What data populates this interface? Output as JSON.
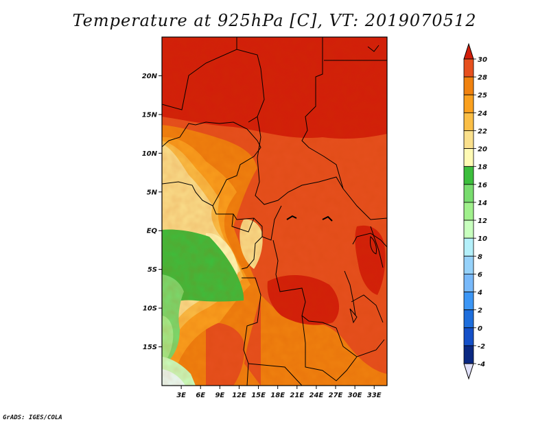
{
  "title": "Temperature at 925hPa [C], VT: 2019070512",
  "credit": "GrADS: IGES/COLA",
  "map": {
    "region": "Central Africa",
    "lon_range": [
      0,
      35
    ],
    "lat_range": [
      -20,
      25
    ],
    "lat_ticks": [
      {
        "value": 20,
        "label": "20N"
      },
      {
        "value": 15,
        "label": "15N"
      },
      {
        "value": 10,
        "label": "10N"
      },
      {
        "value": 5,
        "label": "5N"
      },
      {
        "value": 0,
        "label": "EQ"
      },
      {
        "value": -5,
        "label": "5S"
      },
      {
        "value": -10,
        "label": "10S"
      },
      {
        "value": -15,
        "label": "15S"
      }
    ],
    "lon_ticks": [
      {
        "value": 3,
        "label": "3E"
      },
      {
        "value": 6,
        "label": "6E"
      },
      {
        "value": 9,
        "label": "9E"
      },
      {
        "value": 12,
        "label": "12E"
      },
      {
        "value": 15,
        "label": "15E"
      },
      {
        "value": 18,
        "label": "18E"
      },
      {
        "value": 21,
        "label": "21E"
      },
      {
        "value": 24,
        "label": "24E"
      },
      {
        "value": 27,
        "label": "27E"
      },
      {
        "value": 30,
        "label": "30E"
      },
      {
        "value": 33,
        "label": "33E"
      }
    ]
  },
  "colorbar": {
    "labels": [
      "30",
      "28",
      "25",
      "24",
      "22",
      "20",
      "18",
      "16",
      "14",
      "12",
      "10",
      "8",
      "6",
      "4",
      "2",
      "0",
      "-2",
      "-4"
    ],
    "colors": [
      "#d21e0a",
      "#e6501e",
      "#f0820f",
      "#faa01e",
      "#fabe46",
      "#fae08c",
      "#fffab4",
      "#3cbe3c",
      "#78dc6e",
      "#a0f08c",
      "#c8ffbe",
      "#b4f0fa",
      "#96d2fa",
      "#78b9fa",
      "#3c96f5",
      "#1e6edc",
      "#1450c8",
      "#0a2882",
      "#e1e1fa"
    ]
  }
}
